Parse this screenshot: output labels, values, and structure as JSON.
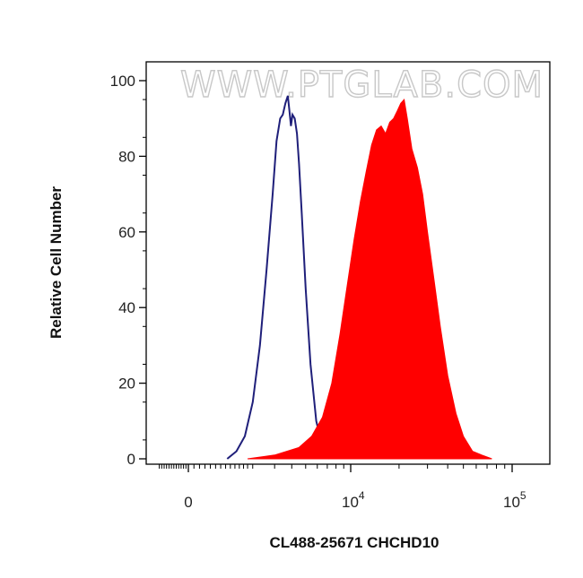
{
  "chart_data": {
    "type": "area",
    "title": "",
    "xlabel": "CL488-25671 CHCHD10",
    "ylabel": "Relative Cell Number",
    "watermark": "WWW.PTGLAB.COM",
    "xscale": "biexponential",
    "xlim": [
      -2000,
      150000
    ],
    "ylim": [
      0,
      100
    ],
    "y_ticks": [
      {
        "value": 0,
        "label": "0"
      },
      {
        "value": 20,
        "label": "20"
      },
      {
        "value": 40,
        "label": "40"
      },
      {
        "value": 60,
        "label": "60"
      },
      {
        "value": 80,
        "label": "80"
      },
      {
        "value": 100,
        "label": "100"
      }
    ],
    "x_ticks": [
      {
        "value": 0,
        "base": "0",
        "exp": ""
      },
      {
        "value": 10000,
        "base": "10",
        "exp": "4"
      },
      {
        "value": 100000,
        "base": "10",
        "exp": "5"
      }
    ],
    "grid": false,
    "series": [
      {
        "style": "line",
        "color": "#1f1f7a",
        "x": [
          1100,
          1400,
          1700,
          2000,
          2300,
          2600,
          2900,
          3100,
          3300,
          3450,
          3600,
          3750,
          3850,
          3950,
          4050,
          4200,
          4350,
          4500,
          4700,
          5000,
          5400,
          5900,
          6600,
          7200
        ],
        "y": [
          0,
          2,
          6,
          15,
          30,
          50,
          70,
          84,
          90,
          91,
          94,
          96,
          92,
          88,
          91,
          90,
          86,
          78,
          65,
          45,
          25,
          10,
          2,
          0
        ]
      },
      {
        "style": "filled",
        "color": "#ff0000",
        "x": [
          1800,
          3000,
          4500,
          5500,
          6500,
          7500,
          8500,
          9500,
          10500,
          11500,
          12500,
          13500,
          14500,
          15500,
          16500,
          17500,
          18500,
          19500,
          20500,
          21500,
          22500,
          24000,
          26000,
          28000,
          30000,
          33000,
          36000,
          40000,
          45000,
          50000,
          57000,
          65000,
          75000
        ],
        "y": [
          0,
          1,
          3,
          6,
          11,
          20,
          33,
          46,
          58,
          68,
          76,
          83,
          87,
          88,
          86,
          89,
          90,
          92,
          94,
          95,
          90,
          82,
          77,
          70,
          60,
          47,
          35,
          22,
          12,
          6,
          2,
          1,
          0
        ]
      }
    ]
  }
}
